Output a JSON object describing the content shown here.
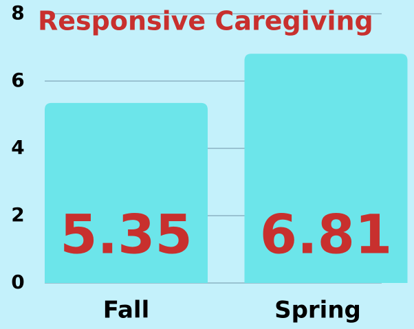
{
  "chart_data": {
    "type": "bar",
    "title": "Responsive Caregiving",
    "categories": [
      "Fall",
      "Spring"
    ],
    "values": [
      5.35,
      6.81
    ],
    "color": "#6ce5ea",
    "ylim": [
      0,
      8
    ],
    "yticks": [
      0,
      2,
      4,
      6,
      8
    ],
    "grid": true
  }
}
